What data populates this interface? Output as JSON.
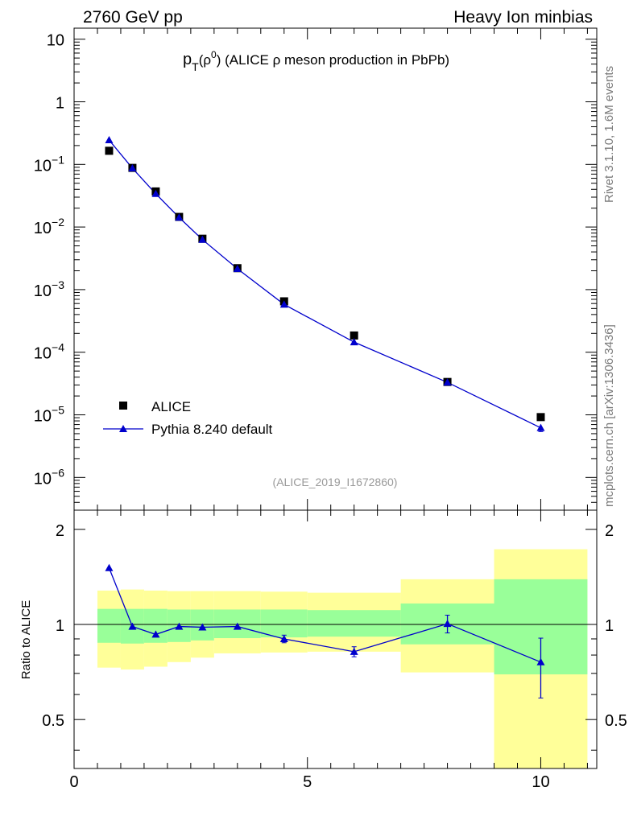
{
  "header": {
    "left": "2760 GeV pp",
    "right": "Heavy Ion minbias"
  },
  "side_labels": {
    "version": "Rivet 3.1.10,  1.6M events",
    "source": "mcplots.cern.ch [arXiv:1306.3436]"
  },
  "colors": {
    "data": "#000000",
    "mc": "#0000cc",
    "band_inner": "#99ff99",
    "band_outer": "#ffff99"
  },
  "chart_data": [
    {
      "type": "scatter",
      "title_main": "p",
      "title_sub": "T",
      "title_rest": "(ρ",
      "title_sup": "0",
      "title_end": ") (ALICE ρ meson production in PbPb)",
      "watermark": "(ALICE_2019_I1672860)",
      "yscale": "log",
      "ylim": [
        3e-07,
        15
      ],
      "xlim": [
        0,
        11.2
      ],
      "ytick_labels": [
        {
          "v": 10,
          "m": "10",
          "e": ""
        },
        {
          "v": 1,
          "m": "1",
          "e": ""
        },
        {
          "v": 0.1,
          "m": "10",
          "e": "−1"
        },
        {
          "v": 0.01,
          "m": "10",
          "e": "−2"
        },
        {
          "v": 0.001,
          "m": "10",
          "e": "−3"
        },
        {
          "v": 0.0001,
          "m": "10",
          "e": "−4"
        },
        {
          "v": 1e-05,
          "m": "10",
          "e": "−5"
        },
        {
          "v": 1e-06,
          "m": "10",
          "e": "−6"
        }
      ],
      "legend": {
        "position": "bottom-left",
        "entries": [
          "ALICE",
          "Pythia 8.240 default"
        ]
      },
      "series": [
        {
          "name": "ALICE",
          "marker": "square",
          "x": [
            0.75,
            1.25,
            1.75,
            2.25,
            2.75,
            3.5,
            4.5,
            6.0,
            8.0,
            10.0
          ],
          "y": [
            0.165,
            0.088,
            0.037,
            0.0145,
            0.0065,
            0.0022,
            0.00065,
            0.000185,
            3.35e-05,
            9.2e-06
          ]
        },
        {
          "name": "Pythia 8.240 default",
          "marker": "triangle",
          "x": [
            0.75,
            1.25,
            1.75,
            2.25,
            2.75,
            3.5,
            4.5,
            6.0,
            8.0,
            10.0
          ],
          "y": [
            0.245,
            0.087,
            0.034,
            0.0142,
            0.0063,
            0.00215,
            0.00058,
            0.000145,
            3.3e-05,
            6.2e-06
          ],
          "yerr": [
            0,
            0,
            0,
            0,
            0,
            0,
            0,
            0,
            0,
            8e-07
          ]
        }
      ]
    },
    {
      "type": "scatter",
      "ylabel": "Ratio to ALICE",
      "xlabel": "",
      "ylim": [
        0.35,
        2.3
      ],
      "xlim": [
        0,
        11.2
      ],
      "yticks": [
        0.5,
        1,
        2
      ],
      "ytick_labels": [
        "0.5",
        "1",
        "2"
      ],
      "xticks": [
        0,
        5,
        10
      ],
      "xtick_labels": [
        "0",
        "5",
        "10"
      ],
      "bands": [
        {
          "x0": 0.5,
          "x1": 1.0,
          "inner": [
            0.875,
            1.12
          ],
          "outer": [
            0.73,
            1.28
          ]
        },
        {
          "x0": 1.0,
          "x1": 1.5,
          "inner": [
            0.87,
            1.12
          ],
          "outer": [
            0.72,
            1.29
          ]
        },
        {
          "x0": 1.5,
          "x1": 2.0,
          "inner": [
            0.875,
            1.12
          ],
          "outer": [
            0.735,
            1.28
          ]
        },
        {
          "x0": 2.0,
          "x1": 2.5,
          "inner": [
            0.88,
            1.115
          ],
          "outer": [
            0.76,
            1.275
          ]
        },
        {
          "x0": 2.5,
          "x1": 3.0,
          "inner": [
            0.89,
            1.115
          ],
          "outer": [
            0.785,
            1.275
          ]
        },
        {
          "x0": 3.0,
          "x1": 4.0,
          "inner": [
            0.905,
            1.115
          ],
          "outer": [
            0.81,
            1.275
          ]
        },
        {
          "x0": 4.0,
          "x1": 5.0,
          "inner": [
            0.91,
            1.115
          ],
          "outer": [
            0.815,
            1.27
          ]
        },
        {
          "x0": 5.0,
          "x1": 7.0,
          "inner": [
            0.915,
            1.11
          ],
          "outer": [
            0.82,
            1.26
          ]
        },
        {
          "x0": 7.0,
          "x1": 9.0,
          "inner": [
            0.865,
            1.165
          ],
          "outer": [
            0.705,
            1.39
          ]
        },
        {
          "x0": 9.0,
          "x1": 11.0,
          "inner": [
            0.695,
            1.39
          ],
          "outer": [
            0.35,
            1.73
          ]
        }
      ],
      "series": [
        {
          "name": "Pythia 8.240 default",
          "marker": "triangle",
          "x": [
            0.75,
            1.25,
            1.75,
            2.25,
            2.75,
            3.5,
            4.5,
            6.0,
            8.0,
            10.0
          ],
          "y": [
            1.51,
            0.985,
            0.93,
            0.985,
            0.98,
            0.985,
            0.9,
            0.82,
            1.005,
            0.76
          ],
          "yerr_lo": [
            0,
            0,
            0,
            0,
            0,
            0,
            0.025,
            0.03,
            0.065,
            0.175
          ],
          "yerr_hi": [
            0,
            0,
            0,
            0,
            0,
            0,
            0.025,
            0.03,
            0.065,
            0.145
          ]
        }
      ]
    }
  ]
}
